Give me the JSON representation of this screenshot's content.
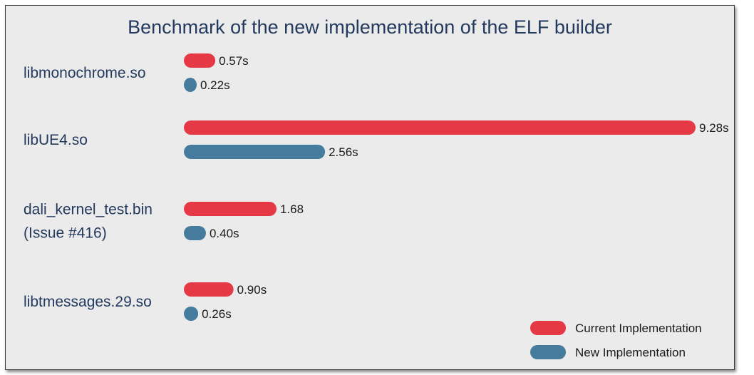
{
  "chart_data": {
    "type": "bar",
    "orientation": "horizontal",
    "title": "Benchmark of the new implementation of the ELF builder",
    "categories": [
      [
        "libmonochrome.so"
      ],
      [
        "libUE4.so"
      ],
      [
        "dali_kernel_test.bin",
        "(Issue #416)"
      ],
      [
        "libtmessages.29.so"
      ]
    ],
    "series": [
      {
        "name": "Current Implementation",
        "color": "#e63946",
        "values": [
          0.57,
          9.28,
          1.68,
          0.9
        ],
        "labels": [
          "0.57s",
          "9.28s",
          "1.68",
          "0.90s"
        ]
      },
      {
        "name": "New Implementation",
        "color": "#457b9d",
        "values": [
          0.22,
          2.56,
          0.4,
          0.26
        ],
        "labels": [
          "0.22s",
          "2.56s",
          "0.40s",
          "0.26s"
        ]
      }
    ],
    "xlim": [
      0,
      9.28
    ],
    "grid": false,
    "legend_position": "bottom-right"
  }
}
